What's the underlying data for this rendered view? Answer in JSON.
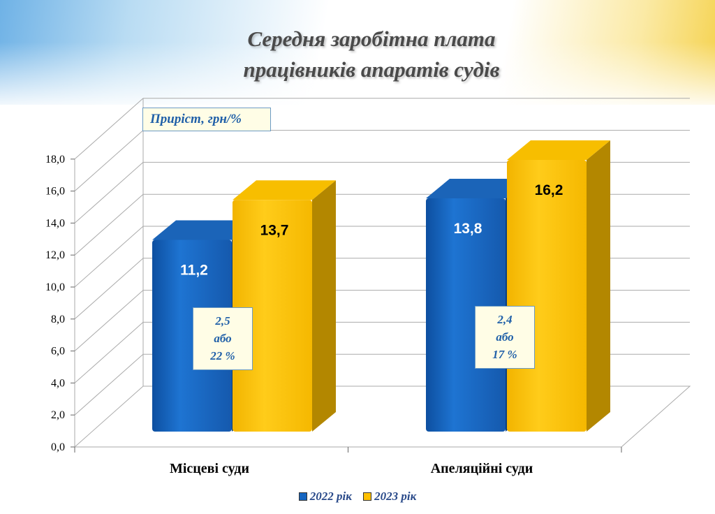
{
  "title": {
    "line1": "Середня заробітна плата",
    "line2": "працівників апаратів судів"
  },
  "unit_label": "Приріст, грн/%",
  "growth_annotations": [
    {
      "line1": "2,5",
      "line2": "або",
      "line3": "22 %"
    },
    {
      "line1": "2,4",
      "line2": "або",
      "line3": "17 %"
    }
  ],
  "colors": {
    "series_2022": "#1565c0",
    "series_2023": "#ffc000",
    "grid": "#aaaaaa"
  },
  "chart_data": {
    "type": "bar",
    "title": "Середня заробітна плата працівників апаратів судів",
    "categories": [
      "Місцеві суди",
      "Апеляційні суди"
    ],
    "series": [
      {
        "name": "2022 рік",
        "values": [
          11.2,
          13.8
        ],
        "labels": [
          "11,2",
          "13,8"
        ]
      },
      {
        "name": "2023 рік",
        "values": [
          13.7,
          16.2
        ],
        "labels": [
          "13,7",
          "16,2"
        ]
      }
    ],
    "y_ticks": [
      "0,0",
      "2,0",
      "4,0",
      "6,0",
      "8,0",
      "10,0",
      "12,0",
      "14,0",
      "16,0",
      "18,0"
    ],
    "ylim": [
      0,
      18
    ],
    "grid": true,
    "legend_position": "bottom",
    "chart_style": "3d-column"
  }
}
